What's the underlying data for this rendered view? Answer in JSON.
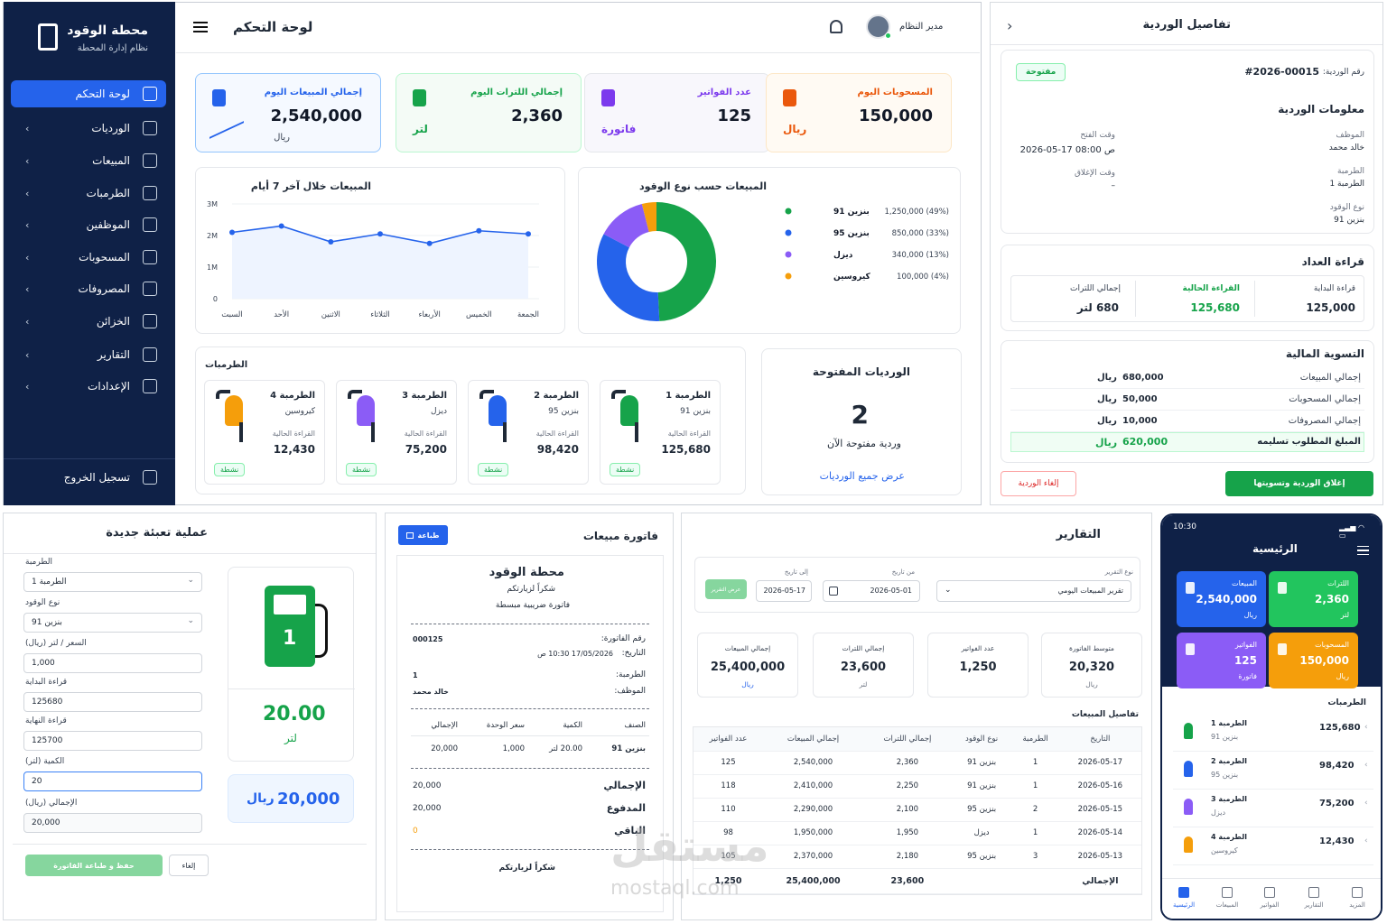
{
  "sidebar": {
    "app_title": "محطة الوقود",
    "app_subtitle": "نظام إدارة المحطة",
    "logout": "تسجيل الخروج",
    "items": [
      {
        "label": "لوحة التحكم"
      },
      {
        "label": "الورديات"
      },
      {
        "label": "المبيعات"
      },
      {
        "label": "الطرمبات"
      },
      {
        "label": "الموظفين"
      },
      {
        "label": "المسحوبات"
      },
      {
        "label": "المصروفات"
      },
      {
        "label": "الخزائن"
      },
      {
        "label": "التقارير"
      },
      {
        "label": "الإعدادات"
      }
    ]
  },
  "header": {
    "title": "لوحة التحكم",
    "user": "مدير النظام"
  },
  "stats": [
    {
      "label": "إجمالي المبيعات اليوم",
      "value": "2,540,000",
      "unit": "ريال",
      "color": "#2563eb"
    },
    {
      "label": "إجمالي اللترات اليوم",
      "value": "2,360",
      "unit": "لتر",
      "color": "#16a34a"
    },
    {
      "label": "عدد الفواتير",
      "value": "125",
      "unit": "فاتورة",
      "color": "#7c3aed"
    },
    {
      "label": "المسحوبات اليوم",
      "value": "150,000",
      "unit": "ريال",
      "color": "#ea580c"
    }
  ],
  "chart_data": [
    {
      "type": "line",
      "title": "المبيعات خلال آخر 7 أيام",
      "categories": [
        "السبت",
        "الأحد",
        "الاثنين",
        "الثلاثاء",
        "الأربعاء",
        "الخميس",
        "الجمعة"
      ],
      "values": [
        2100000,
        2300000,
        1800000,
        2050000,
        1750000,
        2150000,
        2050000
      ],
      "ylim": [
        0,
        3000000
      ],
      "yticks": [
        "0",
        "1M",
        "2M",
        "3M"
      ],
      "color": "#2563eb"
    },
    {
      "type": "pie",
      "title": "المبيعات حسب نوع الوقود",
      "labels": [
        "بنزين 91",
        "بنزين 95",
        "ديزل",
        "كيروسين"
      ],
      "values": [
        1250000,
        850000,
        340000,
        100000
      ],
      "value_labels": [
        "1,250,000 (49%)",
        "850,000 (33%)",
        "340,000 (13%)",
        "100,000 (4%)"
      ],
      "colors": [
        "#16a34a",
        "#2563eb",
        "#8b5cf6",
        "#f59e0b"
      ]
    }
  ],
  "pumps_section": {
    "title": "الطرمبات",
    "reading_label": "القراءة الحالية",
    "active": "نشطة",
    "items": [
      {
        "name": "الطرمبة 1",
        "fuel": "بنزين 91",
        "reading": "125,680",
        "color": "#16a34a"
      },
      {
        "name": "الطرمبة 2",
        "fuel": "بنزين 95",
        "reading": "98,420",
        "color": "#2563eb"
      },
      {
        "name": "الطرمبة 3",
        "fuel": "ديزل",
        "reading": "75,200",
        "color": "#8b5cf6"
      },
      {
        "name": "الطرمبة 4",
        "fuel": "كيروسين",
        "reading": "12,430",
        "color": "#f59e0b"
      }
    ]
  },
  "open_shifts": {
    "title": "الورديات المفتوحة",
    "count": "2",
    "caption": "وردية مفتوحة الآن",
    "link": "عرض جميع الورديات"
  },
  "shift_detail": {
    "title": "تفاصيل الوردية",
    "number_label": "رقم الوردية:",
    "number": "#2026-00015",
    "status": "مفتوحة",
    "info_title": "معلومات الوردية",
    "employee_label": "الموظف",
    "employee": "خالد محمد",
    "open_time_label": "وقت الفتح",
    "open_time": "2026-05-17  08:00 ص",
    "pump_label": "الطرمبة",
    "pump": "الطرمبة 1",
    "close_time_label": "وقت الإغلاق",
    "close_time": "–",
    "fuel_label": "نوع الوقود",
    "fuel": "بنزين 91",
    "meter_title": "قراءة العداد",
    "meter": [
      {
        "label": "قراءة البداية",
        "value": "125,000"
      },
      {
        "label": "القراءة الحالية",
        "value": "125,680"
      },
      {
        "label": "إجمالي اللترات",
        "value": "680 لتر"
      }
    ],
    "settle_title": "التسوية المالية",
    "settle": [
      {
        "label": "إجمالي المبيعات",
        "value": "680,000"
      },
      {
        "label": "إجمالي المسحوبات",
        "value": "50,000"
      },
      {
        "label": "إجمالي المصروفات",
        "value": "10,000"
      }
    ],
    "due_label": "المبلغ المطلوب تسليمه",
    "due": "620,000",
    "currency": "ريال",
    "close_btn": "إغلاق الوردية وتسويتها",
    "cancel_btn": "إلغاء الوردية"
  },
  "fill_form": {
    "title": "عملية تعبئة جديدة",
    "pump_label": "الطرمبة",
    "pump": "الطرمبة 1",
    "fuel_label": "نوع الوقود",
    "fuel": "بنزين 91",
    "price_label": "السعر / لتر (ريال)",
    "price": "1,000",
    "start_label": "قراءة البداية",
    "start": "125680",
    "end_label": "قراءة النهاية",
    "end": "125700",
    "qty_label": "الكمية (لتر)",
    "qty": "20",
    "total_label": "الإجمالي (ريال)",
    "total": "20,000",
    "save_btn": "حفظ و طباعة الفاتورة",
    "cancel_btn": "إلغاء",
    "pump_num": "1",
    "liters": "20.00",
    "liters_unit": "لتر",
    "amount": "20,000",
    "amount_unit": "ريال"
  },
  "invoice": {
    "title": "فاتورة مبيعات",
    "print": "طباعة",
    "station": "محطة الوقود",
    "thanks": "شكراً لزيارتكم",
    "type": "فاتورة ضريبية مبسطة",
    "no_label": "رقم الفاتورة:",
    "no": "000125",
    "date_label": "التاريخ:",
    "date": "17/05/2026 10:30 ص",
    "pump_label": "الطرمبة:",
    "pump": "1",
    "emp_label": "الموظف:",
    "emp": "خالد محمد",
    "cols": [
      "الصنف",
      "الكمية",
      "سعر الوحدة",
      "الإجمالي"
    ],
    "item": [
      "بنزين 91",
      "20.00 لتر",
      "1,000",
      "20,000"
    ],
    "total_label": "الإجمالي",
    "total": "20,000",
    "paid_label": "المدفوع",
    "paid": "20,000",
    "rest_label": "الباقي",
    "rest": "0",
    "footer": "شكراً لزيارتكم"
  },
  "reports": {
    "title": "التقارير",
    "type_label": "نوع التقرير",
    "type": "تقرير المبيعات اليومي",
    "from_label": "من تاريخ",
    "from": "2026-05-01",
    "to_label": "إلى تاريخ",
    "to": "2026-05-17",
    "show_btn": "عرض التقرير",
    "kpis": [
      {
        "label": "متوسط الفاتورة",
        "value": "20,320",
        "unit": "ريال"
      },
      {
        "label": "عدد الفواتير",
        "value": "1,250",
        "unit": ""
      },
      {
        "label": "إجمالي اللترات",
        "value": "23,600",
        "unit": "لتر"
      },
      {
        "label": "إجمالي المبيعات",
        "value": "25,400,000",
        "unit": "ريال"
      }
    ],
    "details_title": "تفاصيل المبيعات",
    "cols": [
      "التاريخ",
      "الطرمبة",
      "نوع الوقود",
      "إجمالي اللترات",
      "إجمالي المبيعات",
      "عدد الفواتير"
    ],
    "rows": [
      [
        "2026-05-17",
        "1",
        "بنزين 91",
        "2,360",
        "2,540,000",
        "125"
      ],
      [
        "2026-05-16",
        "1",
        "بنزين 91",
        "2,250",
        "2,410,000",
        "118"
      ],
      [
        "2026-05-15",
        "2",
        "بنزين 95",
        "2,100",
        "2,290,000",
        "110"
      ],
      [
        "2026-05-14",
        "1",
        "ديزل",
        "1,950",
        "1,950,000",
        "98"
      ],
      [
        "2026-05-13",
        "3",
        "بنزين 95",
        "2,180",
        "2,370,000",
        "105"
      ]
    ],
    "total_row": [
      "الإجمالي",
      "",
      "",
      "23,600",
      "25,400,000",
      "1,250"
    ]
  },
  "mobile": {
    "time": "10:30",
    "title": "الرئيسية",
    "cards": [
      {
        "label": "اللترات",
        "value": "2,360",
        "unit": "لتر",
        "color": "#22c55e"
      },
      {
        "label": "المبيعات",
        "value": "2,540,000",
        "unit": "ريال",
        "color": "#2563eb"
      },
      {
        "label": "المسحوبات",
        "value": "150,000",
        "unit": "ريال",
        "color": "#f59e0b"
      },
      {
        "label": "الفواتير",
        "value": "125",
        "unit": "فاتورة",
        "color": "#8b5cf6"
      }
    ],
    "pumps_title": "الطرمبات",
    "pumps": [
      {
        "name": "الطرمبة 1",
        "fuel": "بنزين 91",
        "val": "125,680",
        "color": "#16a34a"
      },
      {
        "name": "الطرمبة 2",
        "fuel": "بنزين 95",
        "val": "98,420",
        "color": "#2563eb"
      },
      {
        "name": "الطرمبة 3",
        "fuel": "ديزل",
        "val": "75,200",
        "color": "#8b5cf6"
      },
      {
        "name": "الطرمبة 4",
        "fuel": "كيروسين",
        "val": "12,430",
        "color": "#f59e0b"
      }
    ],
    "nav": [
      "الرئيسية",
      "المبيعات",
      "الفواتير",
      "التقارير",
      "المزيد"
    ]
  },
  "watermark": {
    "text": "مستقل",
    "url": "mostaql.com"
  }
}
